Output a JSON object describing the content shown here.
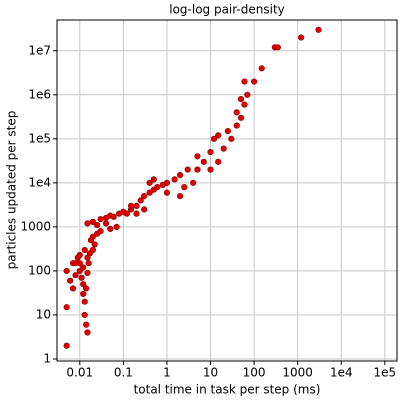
{
  "chart_data": {
    "type": "scatter",
    "title": "log-log pair-density",
    "xlabel": "total time in task per step (ms)",
    "ylabel": "particles updated per step",
    "xscale": "log",
    "yscale": "log",
    "grid": true,
    "color": "#dd0000",
    "edgecolor": "#8a0000",
    "xlim": [
      0.003,
      190000
    ],
    "ylim": [
      0.9,
      50000000
    ],
    "xticks": [
      0.01,
      0.1,
      1,
      10,
      100,
      1000,
      {
        "value": 10000,
        "label": "1e4"
      },
      {
        "value": 100000,
        "label": "1e5"
      }
    ],
    "yticks": [
      1,
      10,
      100,
      1000,
      {
        "value": 10000,
        "label": "1e4"
      },
      {
        "value": 100000,
        "label": "1e5"
      },
      {
        "value": 1000000,
        "label": "1e6"
      },
      {
        "value": 10000000,
        "label": "1e7"
      }
    ],
    "x": [
      0.005,
      0.005,
      0.006,
      0.005,
      0.007,
      0.008,
      0.008,
      0.009,
      0.01,
      0.01,
      0.011,
      0.012,
      0.012,
      0.013,
      0.013,
      0.014,
      0.015,
      0.012,
      0.013,
      0.015,
      0.016,
      0.017,
      0.02,
      0.022,
      0.02,
      0.018,
      0.025,
      0.03,
      0.015,
      0.02,
      0.025,
      0.03,
      0.04,
      0.05,
      0.06,
      0.08,
      0.1,
      0.12,
      0.15,
      0.2,
      0.25,
      0.3,
      0.4,
      0.5,
      0.6,
      0.4,
      0.5,
      0.8,
      1,
      1.5,
      2,
      3,
      2.5,
      4,
      5,
      5,
      7,
      10,
      10,
      15,
      20,
      12,
      15,
      25,
      30,
      40,
      50,
      40,
      60,
      70,
      50,
      100,
      60,
      150,
      300,
      350,
      1200,
      3000,
      0.15,
      0.07,
      0.05,
      0.3,
      0.2,
      1,
      2,
      0.04,
      0.015,
      0.014,
      0.01,
      0.007
    ],
    "values": [
      2,
      15,
      60,
      100,
      40,
      80,
      150,
      200,
      230,
      100,
      70,
      50,
      30,
      20,
      10,
      6,
      4,
      120,
      300,
      200,
      150,
      250,
      300,
      400,
      600,
      500,
      700,
      800,
      1200,
      1300,
      1100,
      1500,
      1600,
      1800,
      1700,
      2000,
      2200,
      2000,
      2500,
      3000,
      4000,
      5000,
      6000,
      7000,
      8000,
      10000,
      12000,
      9000,
      10000,
      12000,
      15000,
      20000,
      8000,
      10000,
      20000,
      40000,
      30000,
      50000,
      20000,
      30000,
      60000,
      100000,
      120000,
      150000,
      100000,
      200000,
      300000,
      400000,
      600000,
      1000000,
      800000,
      2000000,
      2000000,
      4000000,
      12000000,
      12000000,
      20000000,
      30000000,
      3000,
      1000,
      900,
      2500,
      2000,
      6000,
      5000,
      1200,
      90,
      40,
      150,
      150
    ]
  }
}
